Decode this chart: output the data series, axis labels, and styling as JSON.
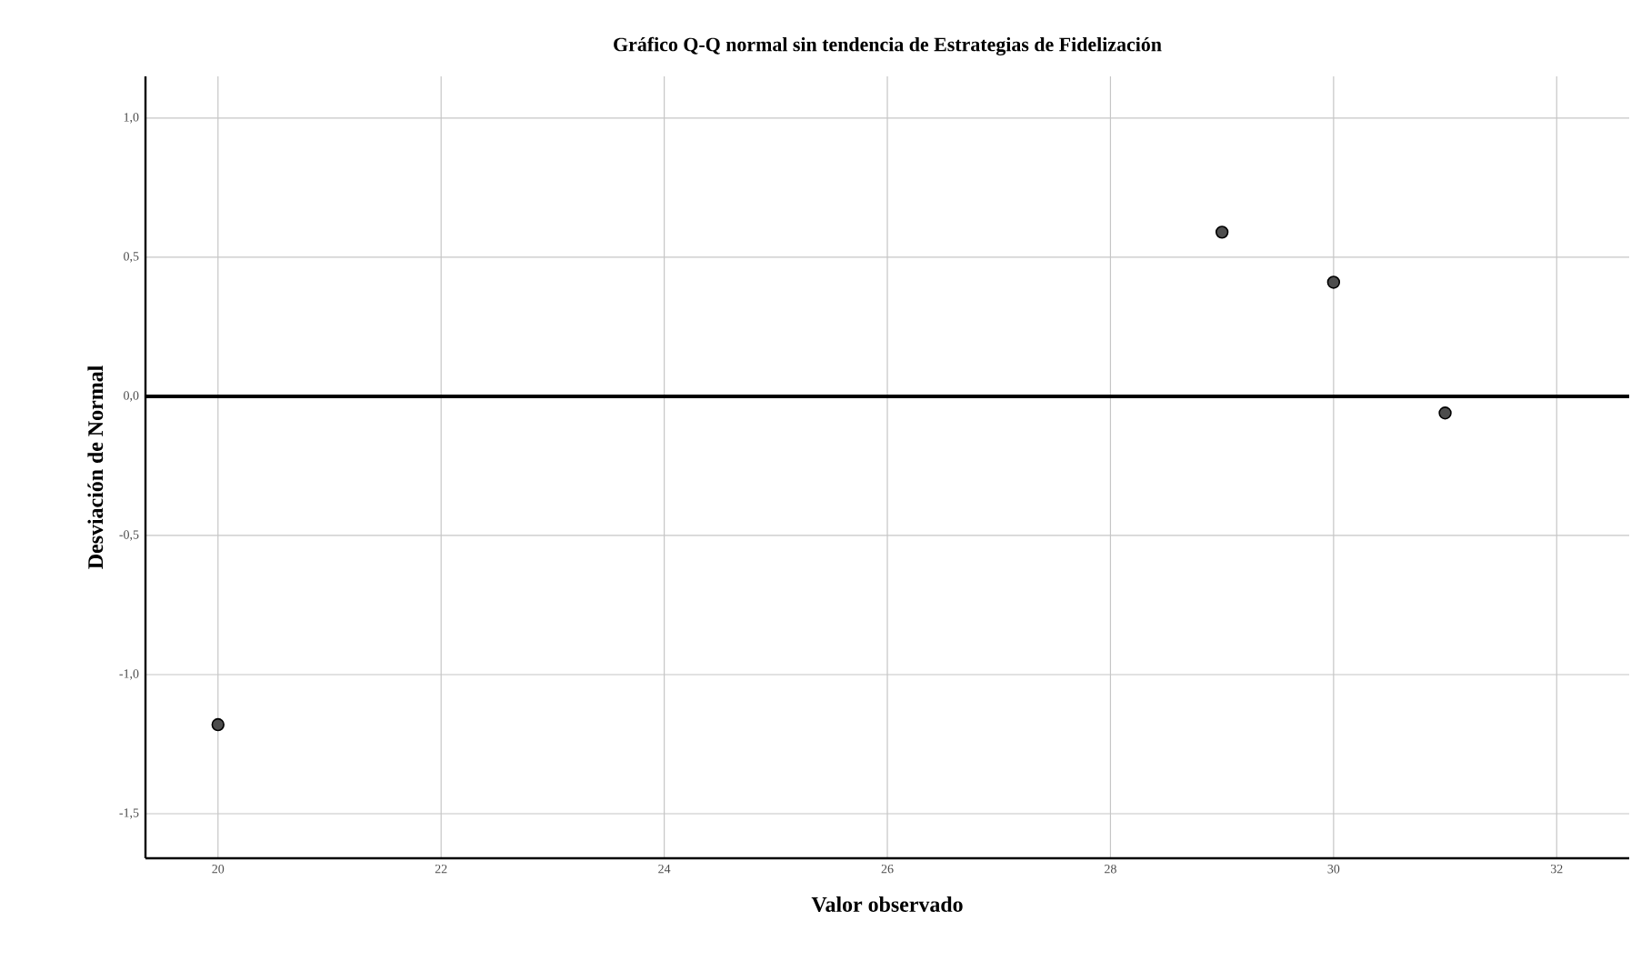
{
  "chart_data": {
    "type": "scatter",
    "title": "Gráfico Q-Q normal sin tendencia de Estrategias de Fidelización",
    "xlabel": "Valor observado",
    "ylabel": "Desviación de Normal",
    "x": [
      20,
      29,
      30,
      31
    ],
    "series": [
      {
        "color": "#4d4d4d",
        "values": [
          -1.18,
          0.59,
          0.41,
          -0.06
        ]
      }
    ],
    "xlim": [
      19.35,
      32.65
    ],
    "ylim": [
      -1.66,
      1.15
    ],
    "xticks": [
      20,
      22,
      24,
      26,
      28,
      30,
      32
    ],
    "yticks": [
      {
        "value": -1.5,
        "label": "-1,5"
      },
      {
        "value": -1.0,
        "label": "-1,0"
      },
      {
        "value": -0.5,
        "label": "-0,5"
      },
      {
        "value": 0.0,
        "label": "0,0"
      },
      {
        "value": 0.5,
        "label": "0,5"
      },
      {
        "value": 1.0,
        "label": "1,0"
      }
    ],
    "ref_lines": [
      {
        "axis": "y",
        "value": 0,
        "color": "#000000",
        "line_style": "solid"
      }
    ],
    "grid": true
  }
}
